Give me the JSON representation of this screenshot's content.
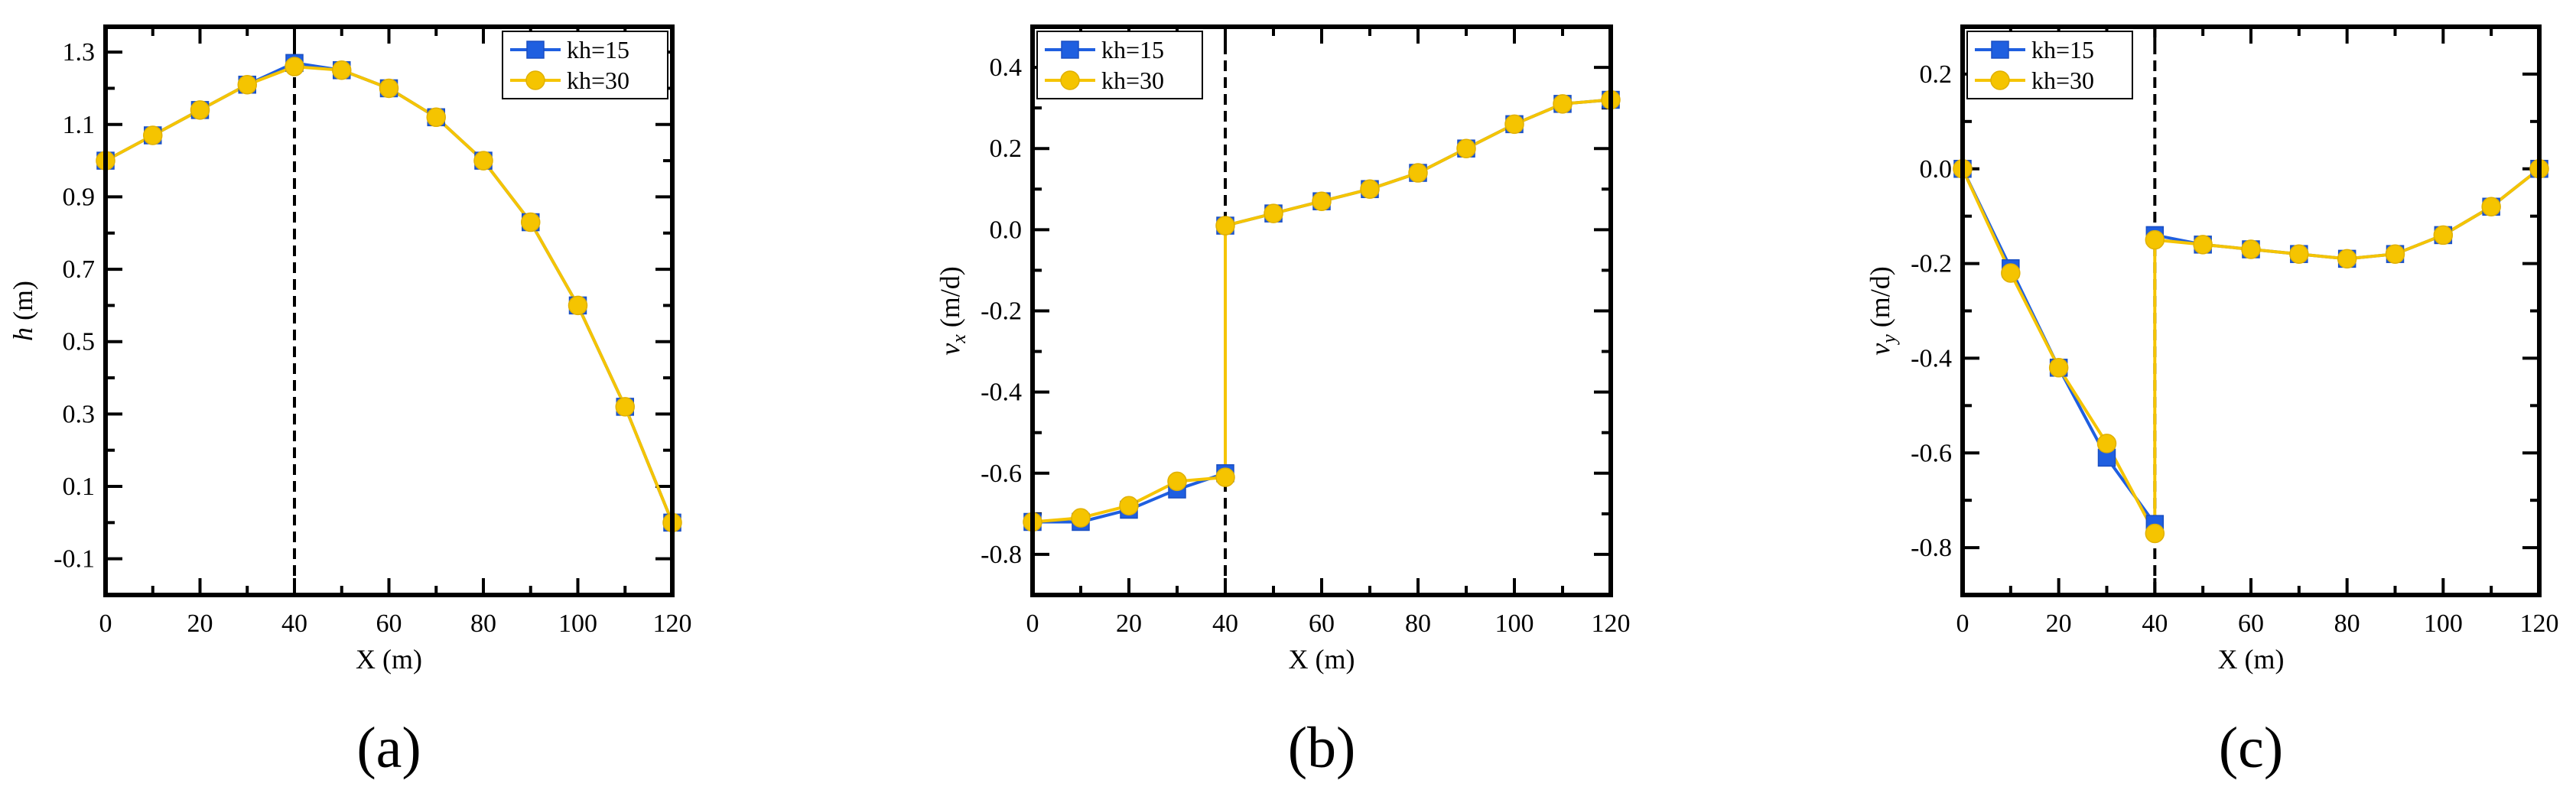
{
  "chart_data": [
    {
      "type": "line",
      "panel_label": "(a)",
      "xlabel": "X (m)",
      "ylabel_main": "h",
      "ylabel_sub": "",
      "ylabel_unit": " (m)",
      "xlim": [
        0,
        120
      ],
      "ylim": [
        -0.2,
        1.37
      ],
      "xticks": [
        0,
        20,
        40,
        60,
        80,
        100,
        120
      ],
      "yticks": [
        -0.1,
        0.1,
        0.3,
        0.5,
        0.7,
        0.9,
        1.1,
        1.3
      ],
      "ytick_labels": [
        "-0.1",
        "0.1",
        "0.3",
        "0.5",
        "0.7",
        "0.9",
        "1.1",
        "1.3"
      ],
      "divider_x": 40,
      "legend_position": "top-right",
      "series": [
        {
          "name": "kh=15",
          "color": "#1f5fe0",
          "marker": "square",
          "segments": [
            [
              [
                0,
                1.0
              ],
              [
                10,
                1.07
              ],
              [
                20,
                1.14
              ],
              [
                30,
                1.21
              ],
              [
                40,
                1.27
              ],
              [
                50,
                1.25
              ],
              [
                60,
                1.2
              ],
              [
                70,
                1.12
              ],
              [
                80,
                1.0
              ],
              [
                90,
                0.83
              ],
              [
                100,
                0.6
              ],
              [
                110,
                0.32
              ],
              [
                120,
                0.0
              ]
            ]
          ]
        },
        {
          "name": "kh=30",
          "color": "#f5c400",
          "marker": "circle",
          "segments": [
            [
              [
                0,
                1.0
              ],
              [
                10,
                1.07
              ],
              [
                20,
                1.14
              ],
              [
                30,
                1.21
              ],
              [
                40,
                1.26
              ],
              [
                50,
                1.25
              ],
              [
                60,
                1.2
              ],
              [
                70,
                1.12
              ],
              [
                80,
                1.0
              ],
              [
                90,
                0.83
              ],
              [
                100,
                0.6
              ],
              [
                110,
                0.32
              ],
              [
                120,
                0.0
              ]
            ]
          ]
        }
      ]
    },
    {
      "type": "line",
      "panel_label": "(b)",
      "xlabel": "X (m)",
      "ylabel_main": "v",
      "ylabel_sub": "x",
      "ylabel_unit": " (m/d)",
      "xlim": [
        0,
        120
      ],
      "ylim": [
        -0.9,
        0.5
      ],
      "xticks": [
        0,
        20,
        40,
        60,
        80,
        100,
        120
      ],
      "yticks": [
        -0.8,
        -0.6,
        -0.4,
        -0.2,
        0.0,
        0.2,
        0.4
      ],
      "ytick_labels": [
        "-0.8",
        "-0.6",
        "-0.4",
        "-0.2",
        "0.0",
        "0.2",
        "0.4"
      ],
      "divider_x": 40,
      "legend_position": "top-left",
      "series": [
        {
          "name": "kh=15",
          "color": "#1f5fe0",
          "marker": "square",
          "segments": [
            [
              [
                0,
                -0.72
              ],
              [
                10,
                -0.72
              ],
              [
                20,
                -0.69
              ],
              [
                30,
                -0.64
              ],
              [
                40,
                -0.6
              ]
            ],
            [
              [
                40,
                0.01
              ],
              [
                50,
                0.04
              ],
              [
                60,
                0.07
              ],
              [
                70,
                0.1
              ],
              [
                80,
                0.14
              ],
              [
                90,
                0.2
              ],
              [
                100,
                0.26
              ],
              [
                110,
                0.31
              ],
              [
                120,
                0.32
              ]
            ]
          ]
        },
        {
          "name": "kh=30",
          "color": "#f5c400",
          "marker": "circle",
          "segments": [
            [
              [
                0,
                -0.72
              ],
              [
                10,
                -0.71
              ],
              [
                20,
                -0.68
              ],
              [
                30,
                -0.62
              ],
              [
                40,
                -0.61
              ],
              [
                40,
                0.01
              ],
              [
                50,
                0.04
              ],
              [
                60,
                0.07
              ],
              [
                70,
                0.1
              ],
              [
                80,
                0.14
              ],
              [
                90,
                0.2
              ],
              [
                100,
                0.26
              ],
              [
                110,
                0.31
              ],
              [
                120,
                0.32
              ]
            ]
          ]
        }
      ]
    },
    {
      "type": "line",
      "panel_label": "(c)",
      "xlabel": "X (m)",
      "ylabel_main": "v",
      "ylabel_sub": "y",
      "ylabel_unit": " (m/d)",
      "xlim": [
        0,
        120
      ],
      "ylim": [
        -0.9,
        0.3
      ],
      "xticks": [
        0,
        20,
        40,
        60,
        80,
        100,
        120
      ],
      "yticks": [
        -0.8,
        -0.6,
        -0.4,
        -0.2,
        0.0,
        0.2
      ],
      "ytick_labels": [
        "-0.8",
        "-0.6",
        "-0.4",
        "-0.2",
        "0.0",
        "0.2"
      ],
      "divider_x": 40,
      "legend_position": "top-left",
      "series": [
        {
          "name": "kh=15",
          "color": "#1f5fe0",
          "marker": "square",
          "segments": [
            [
              [
                0,
                0.0
              ],
              [
                10,
                -0.21
              ],
              [
                20,
                -0.42
              ],
              [
                30,
                -0.61
              ],
              [
                40,
                -0.75
              ]
            ],
            [
              [
                40,
                -0.14
              ],
              [
                50,
                -0.16
              ],
              [
                60,
                -0.17
              ],
              [
                70,
                -0.18
              ],
              [
                80,
                -0.19
              ],
              [
                90,
                -0.18
              ],
              [
                100,
                -0.14
              ],
              [
                110,
                -0.08
              ],
              [
                120,
                0.0
              ]
            ]
          ]
        },
        {
          "name": "kh=30",
          "color": "#f5c400",
          "marker": "circle",
          "segments": [
            [
              [
                0,
                0.0
              ],
              [
                10,
                -0.22
              ],
              [
                20,
                -0.42
              ],
              [
                30,
                -0.58
              ],
              [
                40,
                -0.77
              ],
              [
                40,
                -0.15
              ],
              [
                50,
                -0.16
              ],
              [
                60,
                -0.17
              ],
              [
                70,
                -0.18
              ],
              [
                80,
                -0.19
              ],
              [
                90,
                -0.18
              ],
              [
                100,
                -0.14
              ],
              [
                110,
                -0.08
              ],
              [
                120,
                0.0
              ]
            ]
          ]
        }
      ]
    }
  ]
}
